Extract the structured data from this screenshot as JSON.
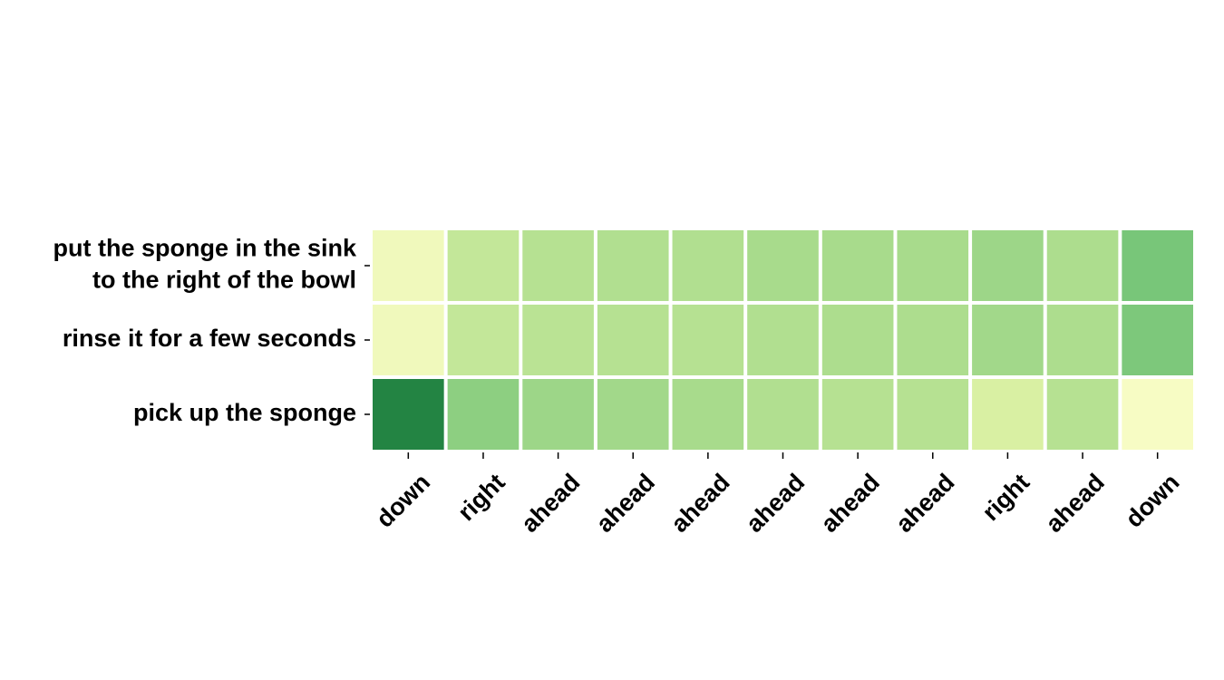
{
  "chart_data": {
    "type": "heatmap",
    "title": "",
    "xlabel": "",
    "ylabel": "",
    "rows": [
      [
        "put the sponge in the sink",
        "to the right of the bowl"
      ],
      [
        "rinse it for a few seconds"
      ],
      [
        "pick up the sponge"
      ]
    ],
    "columns": [
      "down",
      "right",
      "ahead",
      "ahead",
      "ahead",
      "ahead",
      "ahead",
      "ahead",
      "right",
      "ahead",
      "down"
    ],
    "values": [
      [
        0.08,
        0.3,
        0.36,
        0.38,
        0.38,
        0.42,
        0.42,
        0.42,
        0.46,
        0.4,
        0.6
      ],
      [
        0.08,
        0.3,
        0.34,
        0.36,
        0.36,
        0.38,
        0.4,
        0.4,
        0.44,
        0.4,
        0.58
      ],
      [
        1.0,
        0.52,
        0.46,
        0.44,
        0.42,
        0.38,
        0.36,
        0.36,
        0.2,
        0.36,
        0.04
      ]
    ],
    "colorscale": [
      "#ffffcc",
      "#d9f0a3",
      "#addd8e",
      "#78c679",
      "#41ab5d",
      "#238443"
    ],
    "grid": false,
    "legend": "none"
  }
}
